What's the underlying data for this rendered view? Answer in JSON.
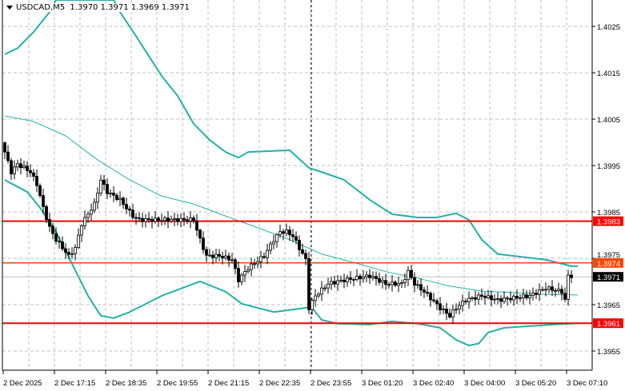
{
  "header": {
    "symbol": "USDCAD,M5",
    "ohlc": "1.3970 1.3971 1.3969 1.3971"
  },
  "colors": {
    "band": "#20b2aa",
    "bull_body": "#ffffff",
    "bear_body": "#000000",
    "support_line": "#ff0000",
    "level_line": "#ff4500",
    "bid_line": "#c0c0c0",
    "grid": "#c0c0c0"
  },
  "chart_data": {
    "type": "candlestick",
    "title": "USDCAD,M5",
    "ylim": [
      1.395,
      1.4033
    ],
    "grid": true,
    "y_ticks": [
      "1.4025",
      "1.4015",
      "1.4005",
      "1.3995",
      "1.3985",
      "1.3975",
      "1.3965",
      "1.3955"
    ],
    "x_ticks": [
      "2 Dec 2025",
      "2 Dec 17:15",
      "2 Dec 18:35",
      "2 Dec 19:55",
      "2 Dec 21:15",
      "2 Dec 22:35",
      "2 Dec 23:55",
      "3 Dec 01:20",
      "3 Dec 02:40",
      "3 Dec 04:00",
      "3 Dec 05:20",
      "3 Dec 07:10"
    ],
    "bars_per_tick": 16,
    "bar_count": 178,
    "day_separator_bar": 96,
    "close_keypoints": [
      [
        0,
        1.39979
      ],
      [
        2,
        1.39936
      ],
      [
        4,
        1.39953
      ],
      [
        6,
        1.39945
      ],
      [
        8,
        1.39936
      ],
      [
        10,
        1.3991
      ],
      [
        12,
        1.39859
      ],
      [
        14,
        1.39816
      ],
      [
        16,
        1.3979
      ],
      [
        20,
        1.39755
      ],
      [
        22,
        1.39772
      ],
      [
        24,
        1.39824
      ],
      [
        28,
        1.39867
      ],
      [
        30,
        1.39919
      ],
      [
        32,
        1.39893
      ],
      [
        36,
        1.39876
      ],
      [
        40,
        1.39841
      ],
      [
        42,
        1.39833
      ],
      [
        59,
        1.39833
      ],
      [
        61,
        1.3979
      ],
      [
        63,
        1.39755
      ],
      [
        67,
        1.39755
      ],
      [
        71,
        1.39747
      ],
      [
        73,
        1.39703
      ],
      [
        76,
        1.39729
      ],
      [
        81,
        1.39755
      ],
      [
        84,
        1.3979
      ],
      [
        86,
        1.39807
      ],
      [
        88,
        1.39807
      ],
      [
        90,
        1.39798
      ],
      [
        92,
        1.39772
      ],
      [
        94,
        1.39747
      ],
      [
        95,
        1.39643
      ],
      [
        97,
        1.39669
      ],
      [
        101,
        1.39695
      ],
      [
        106,
        1.39703
      ],
      [
        114,
        1.39712
      ],
      [
        119,
        1.39695
      ],
      [
        124,
        1.39695
      ],
      [
        126,
        1.39721
      ],
      [
        128,
        1.39695
      ],
      [
        131,
        1.39678
      ],
      [
        136,
        1.39643
      ],
      [
        139,
        1.39626
      ],
      [
        141,
        1.39643
      ],
      [
        144,
        1.3966
      ],
      [
        149,
        1.39669
      ],
      [
        154,
        1.3966
      ],
      [
        164,
        1.39669
      ],
      [
        169,
        1.39686
      ],
      [
        174,
        1.39678
      ],
      [
        175,
        1.3966
      ],
      [
        176,
        1.39712
      ],
      [
        177,
        1.39712
      ]
    ],
    "bollinger": {
      "upper": [
        [
          0,
          1.4019
        ],
        [
          4,
          1.40203
        ],
        [
          9,
          1.40238
        ],
        [
          14,
          1.40281
        ],
        [
          16,
          1.40307
        ],
        [
          34,
          1.40307
        ],
        [
          36,
          1.40281
        ],
        [
          41,
          1.40229
        ],
        [
          49,
          1.40143
        ],
        [
          54,
          1.401
        ],
        [
          59,
          1.4004
        ],
        [
          64,
          1.40005
        ],
        [
          69,
          1.39979
        ],
        [
          73,
          1.39967
        ],
        [
          76,
          1.39979
        ],
        [
          89,
          1.39983
        ],
        [
          95,
          1.39945
        ],
        [
          99,
          1.39936
        ],
        [
          106,
          1.39919
        ],
        [
          114,
          1.39876
        ],
        [
          121,
          1.39845
        ],
        [
          129,
          1.39838
        ],
        [
          135,
          1.39838
        ],
        [
          141,
          1.39847
        ],
        [
          145,
          1.39833
        ],
        [
          149,
          1.3979
        ],
        [
          154,
          1.39759
        ],
        [
          159,
          1.39755
        ],
        [
          169,
          1.39747
        ],
        [
          177,
          1.39733
        ],
        [
          179,
          1.39733
        ]
      ],
      "middle": [
        [
          0,
          1.40057
        ],
        [
          9,
          1.40045
        ],
        [
          19,
          1.40014
        ],
        [
          29,
          1.39962
        ],
        [
          39,
          1.39919
        ],
        [
          49,
          1.39884
        ],
        [
          59,
          1.39867
        ],
        [
          69,
          1.39841
        ],
        [
          79,
          1.39816
        ],
        [
          89,
          1.3979
        ],
        [
          99,
          1.39759
        ],
        [
          109,
          1.39741
        ],
        [
          119,
          1.39721
        ],
        [
          129,
          1.39707
        ],
        [
          139,
          1.3969
        ],
        [
          149,
          1.39679
        ],
        [
          159,
          1.39676
        ],
        [
          169,
          1.39672
        ],
        [
          179,
          1.39671
        ]
      ],
      "lower": [
        [
          0,
          1.39919
        ],
        [
          7,
          1.39893
        ],
        [
          11,
          1.39859
        ],
        [
          16,
          1.39807
        ],
        [
          21,
          1.39738
        ],
        [
          26,
          1.39669
        ],
        [
          30,
          1.39626
        ],
        [
          34,
          1.39621
        ],
        [
          39,
          1.39634
        ],
        [
          49,
          1.39669
        ],
        [
          59,
          1.39695
        ],
        [
          61,
          1.397
        ],
        [
          69,
          1.39678
        ],
        [
          74,
          1.39652
        ],
        [
          84,
          1.39634
        ],
        [
          94,
          1.39643
        ],
        [
          96,
          1.39643
        ],
        [
          99,
          1.39617
        ],
        [
          104,
          1.39609
        ],
        [
          114,
          1.39607
        ],
        [
          121,
          1.39614
        ],
        [
          129,
          1.39609
        ],
        [
          136,
          1.396
        ],
        [
          141,
          1.39574
        ],
        [
          145,
          1.39562
        ],
        [
          148,
          1.39566
        ],
        [
          151,
          1.3959
        ],
        [
          156,
          1.396
        ],
        [
          171,
          1.39607
        ],
        [
          179,
          1.3961
        ]
      ]
    },
    "levels": [
      {
        "price": "1.3983",
        "color": "#ff0000",
        "style": "solid"
      },
      {
        "price": "1.3974",
        "color": "#ff4500",
        "style": "solid"
      },
      {
        "price": "1.3961",
        "color": "#ff0000",
        "style": "solid"
      }
    ],
    "bid": {
      "price": "1.3971",
      "color": "#000000"
    }
  }
}
